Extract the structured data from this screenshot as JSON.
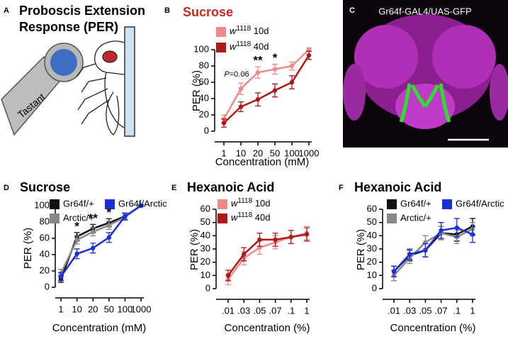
{
  "panel_a": {
    "letter": "A",
    "title_lines": [
      "Proboscis Extension",
      "Response (PER)"
    ],
    "tastant": "Tastant"
  },
  "panel_c": {
    "letter": "C",
    "label": "Gr64f-GAL4/UAS-GFP"
  },
  "chart_data": [
    {
      "type": "line",
      "panel": "B",
      "title": "Sucrose",
      "title_color": "#c8281e",
      "x_label": "Concentration (mM)",
      "y_label": "PER (%)",
      "categories": [
        "1",
        "10",
        "20",
        "50",
        "100",
        "1000"
      ],
      "series": [
        {
          "name": "w1118 10d",
          "color": "#f08a8a",
          "values": [
            15,
            52,
            72,
            76,
            80,
            100
          ],
          "errors": [
            5,
            7,
            7,
            6,
            5,
            2
          ]
        },
        {
          "name": "w1118 40d",
          "color": "#b01818",
          "values": [
            10,
            30,
            39,
            50,
            60,
            93
          ],
          "errors": [
            5,
            6,
            8,
            8,
            8,
            5
          ]
        }
      ],
      "annotations": [
        {
          "text": "P=0.06",
          "x": "10"
        },
        {
          "text": "**",
          "x": "20"
        },
        {
          "text": "*",
          "x": "50"
        }
      ],
      "ylim": [
        0,
        100
      ],
      "yticks": [
        0,
        20,
        40,
        60,
        80,
        100
      ]
    },
    {
      "type": "line",
      "panel": "D",
      "title": "Sucrose",
      "title_color": "#000000",
      "x_label": "Concentration (mM)",
      "y_label": "PER (%)",
      "categories": [
        "1",
        "10",
        "20",
        "50",
        "100",
        "1000"
      ],
      "series": [
        {
          "name": "Gr64f/+",
          "color": "#111111",
          "values": [
            10,
            62,
            72,
            79,
            87,
            100
          ],
          "errors": [
            4,
            5,
            5,
            5,
            4,
            1
          ]
        },
        {
          "name": "Arctic/+",
          "color": "#888888",
          "values": [
            17,
            58,
            68,
            76,
            86,
            100
          ],
          "errors": [
            5,
            5,
            5,
            5,
            4,
            1
          ]
        },
        {
          "name": "Gr64f/Arctic",
          "color": "#1a2fd6",
          "values": [
            13,
            41,
            48,
            61,
            87,
            100
          ],
          "errors": [
            5,
            6,
            6,
            6,
            4,
            1
          ]
        }
      ],
      "annotations": [
        {
          "text": "*",
          "x": "10"
        },
        {
          "text": "**",
          "x": "20"
        },
        {
          "text": "*",
          "x": "50"
        }
      ],
      "ylim": [
        0,
        100
      ],
      "yticks": [
        0,
        20,
        40,
        60,
        80,
        100
      ]
    },
    {
      "type": "line",
      "panel": "E",
      "title": "Hexanoic Acid",
      "title_color": "#000000",
      "x_label": "Concentration (%)",
      "y_label": "PER (%)",
      "categories": [
        ".01",
        ".03",
        ".05",
        ".07",
        ".1",
        "1"
      ],
      "series": [
        {
          "name": "w1118 10d",
          "color": "#f08a8a",
          "values": [
            7,
            23,
            31,
            35,
            39,
            42
          ],
          "errors": [
            4,
            5,
            5,
            5,
            5,
            5
          ]
        },
        {
          "name": "w1118 40d",
          "color": "#b01818",
          "values": [
            10,
            26,
            37,
            37,
            39,
            41
          ],
          "errors": [
            4,
            5,
            5,
            5,
            5,
            5
          ]
        }
      ],
      "ylim": [
        0,
        60
      ],
      "yticks": [
        0,
        10,
        20,
        30,
        40,
        50,
        60
      ]
    },
    {
      "type": "line",
      "panel": "F",
      "title": "Hexanoic Acid",
      "title_color": "#000000",
      "x_label": "Concentration (%)",
      "y_label": "PER (%)",
      "categories": [
        ".01",
        ".03",
        ".05",
        ".07",
        ".1",
        "1"
      ],
      "series": [
        {
          "name": "Gr64f/+",
          "color": "#111111",
          "values": [
            13,
            25,
            29,
            42,
            41,
            47
          ],
          "errors": [
            4,
            4,
            5,
            5,
            5,
            6
          ]
        },
        {
          "name": "Arctic/+",
          "color": "#888888",
          "values": [
            10,
            23,
            35,
            42,
            39,
            45
          ],
          "errors": [
            4,
            4,
            5,
            5,
            5,
            5
          ]
        },
        {
          "name": "Gr64f/Arctic",
          "color": "#1a2fd6",
          "values": [
            13,
            26,
            29,
            44,
            46,
            41
          ],
          "errors": [
            4,
            4,
            5,
            6,
            7,
            6
          ]
        }
      ],
      "ylim": [
        0,
        60
      ],
      "yticks": [
        0,
        10,
        20,
        30,
        40,
        50,
        60
      ]
    }
  ]
}
